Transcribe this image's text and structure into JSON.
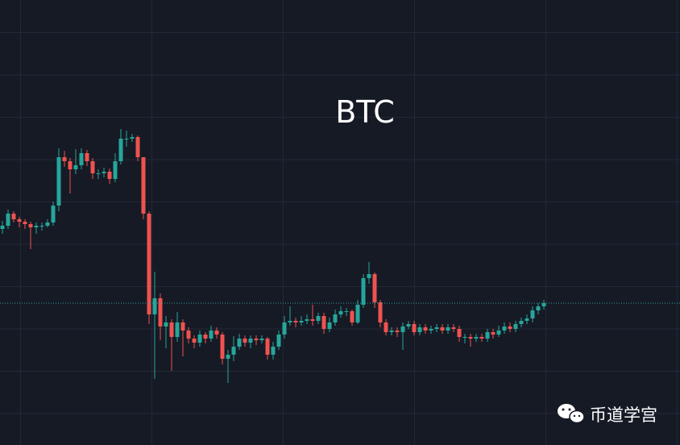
{
  "chart_data": {
    "type": "candlestick",
    "title": "BTC",
    "watermark": "币道学宫",
    "up_color": "#26a69a",
    "down_color": "#ef5350",
    "ylim": [
      0,
      552
    ],
    "open": [
      268,
      272,
      287,
      280,
      277,
      274,
      270,
      272,
      272,
      276,
      297,
      357,
      352,
      342,
      347,
      362,
      352,
      337,
      337,
      339,
      330,
      352,
      380,
      380,
      382,
      357,
      287,
      162,
      182,
      147,
      152,
      134,
      152,
      142,
      132,
      127,
      137,
      132,
      142,
      137,
      107,
      112,
      122,
      132,
      127,
      132,
      130,
      132,
      112,
      122,
      137,
      152,
      154,
      152,
      154,
      156,
      154,
      160,
      144,
      152,
      162,
      166,
      166,
      152,
      174,
      207,
      212,
      177,
      152,
      140,
      142,
      140,
      147,
      150,
      140,
      146,
      142,
      144,
      146,
      142,
      146,
      144,
      134,
      134,
      132,
      134,
      132,
      140,
      137,
      142,
      147,
      144,
      150,
      154,
      157,
      167,
      172
    ],
    "high": [
      278,
      292,
      290,
      283,
      280,
      277,
      276,
      276,
      280,
      302,
      368,
      365,
      356,
      367,
      368,
      366,
      356,
      342,
      344,
      343,
      362,
      392,
      390,
      386,
      384,
      357,
      290,
      215,
      188,
      160,
      156,
      165,
      156,
      146,
      136,
      142,
      140,
      148,
      146,
      140,
      118,
      135,
      138,
      136,
      136,
      136,
      136,
      134,
      128,
      142,
      160,
      172,
      158,
      160,
      162,
      174,
      164,
      164,
      158,
      168,
      172,
      170,
      168,
      180,
      212,
      227,
      214,
      180,
      156,
      146,
      146,
      152,
      154,
      154,
      150,
      150,
      148,
      150,
      150,
      150,
      150,
      148,
      138,
      138,
      138,
      138,
      144,
      144,
      148,
      152,
      152,
      154,
      158,
      162,
      172,
      176,
      180
    ],
    "low": [
      262,
      268,
      276,
      270,
      268,
      243,
      262,
      266,
      270,
      272,
      290,
      345,
      312,
      336,
      342,
      346,
      330,
      330,
      332,
      324,
      326,
      348,
      370,
      376,
      352,
      280,
      150,
      82,
      130,
      120,
      92,
      128,
      110,
      126,
      120,
      122,
      126,
      128,
      132,
      100,
      77,
      104,
      118,
      122,
      120,
      124,
      126,
      106,
      106,
      118,
      132,
      148,
      146,
      148,
      150,
      148,
      150,
      138,
      140,
      148,
      158,
      160,
      148,
      150,
      170,
      200,
      170,
      146,
      136,
      136,
      134,
      118,
      144,
      136,
      136,
      138,
      138,
      140,
      138,
      138,
      140,
      128,
      126,
      122,
      128,
      128,
      128,
      132,
      134,
      138,
      140,
      140,
      146,
      150,
      152,
      162,
      168
    ],
    "close": [
      272,
      287,
      280,
      277,
      274,
      270,
      272,
      272,
      276,
      297,
      357,
      352,
      342,
      347,
      362,
      352,
      337,
      337,
      339,
      330,
      352,
      380,
      380,
      382,
      357,
      287,
      162,
      182,
      147,
      152,
      134,
      152,
      142,
      132,
      127,
      137,
      132,
      142,
      137,
      107,
      112,
      122,
      132,
      127,
      132,
      130,
      132,
      112,
      122,
      137,
      152,
      154,
      152,
      154,
      156,
      154,
      160,
      144,
      152,
      162,
      166,
      166,
      152,
      174,
      207,
      212,
      177,
      152,
      140,
      142,
      140,
      147,
      150,
      140,
      146,
      142,
      144,
      146,
      142,
      146,
      144,
      134,
      134,
      132,
      134,
      132,
      140,
      137,
      142,
      147,
      144,
      150,
      154,
      157,
      167,
      172,
      176
    ]
  }
}
